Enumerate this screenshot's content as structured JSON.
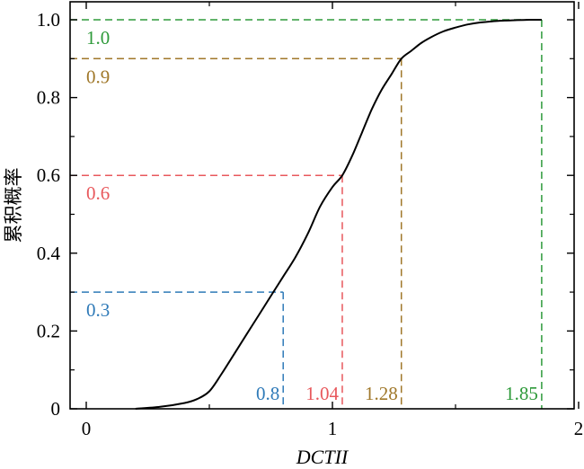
{
  "chart_data": {
    "type": "line",
    "xlabel": "DCTII",
    "ylabel": "累积概率",
    "xlim": [
      -0.05,
      2.0
    ],
    "ylim": [
      0,
      1.0
    ],
    "xticks": [
      0,
      1,
      2
    ],
    "xtick_labels": [
      "0",
      "1",
      "2"
    ],
    "yticks": [
      0,
      0.2,
      0.4,
      0.6,
      0.8,
      1.0
    ],
    "ytick_labels": [
      "0",
      "0.2",
      "0.4",
      "0.6",
      "0.8",
      "1.0"
    ],
    "grid": false,
    "series": [
      {
        "color": "#000000",
        "x": [
          0.2,
          0.3,
          0.4,
          0.45,
          0.5,
          0.55,
          0.6,
          0.65,
          0.7,
          0.75,
          0.8,
          0.85,
          0.9,
          0.95,
          1.0,
          1.04,
          1.08,
          1.12,
          1.16,
          1.2,
          1.24,
          1.28,
          1.32,
          1.36,
          1.4,
          1.45,
          1.5,
          1.55,
          1.6,
          1.65,
          1.7,
          1.75,
          1.8,
          1.85
        ],
        "y": [
          0.0,
          0.005,
          0.015,
          0.025,
          0.045,
          0.09,
          0.14,
          0.19,
          0.24,
          0.29,
          0.34,
          0.39,
          0.45,
          0.52,
          0.57,
          0.6,
          0.65,
          0.71,
          0.77,
          0.82,
          0.86,
          0.9,
          0.92,
          0.94,
          0.955,
          0.97,
          0.98,
          0.988,
          0.993,
          0.996,
          0.998,
          0.999,
          1.0,
          1.0
        ]
      }
    ],
    "annotations": [
      {
        "x": 0.8,
        "y": 0.3,
        "x_label": "0.8",
        "y_label": "0.3",
        "color": "#2f7ab8"
      },
      {
        "x": 1.04,
        "y": 0.6,
        "x_label": "1.04",
        "y_label": "0.6",
        "color": "#e8585c"
      },
      {
        "x": 1.28,
        "y": 0.9,
        "x_label": "1.28",
        "y_label": "0.9",
        "color": "#a0782a"
      },
      {
        "x": 1.85,
        "y": 1.0,
        "x_label": "1.85",
        "y_label": "1.0",
        "color": "#2e9a3a"
      }
    ]
  }
}
